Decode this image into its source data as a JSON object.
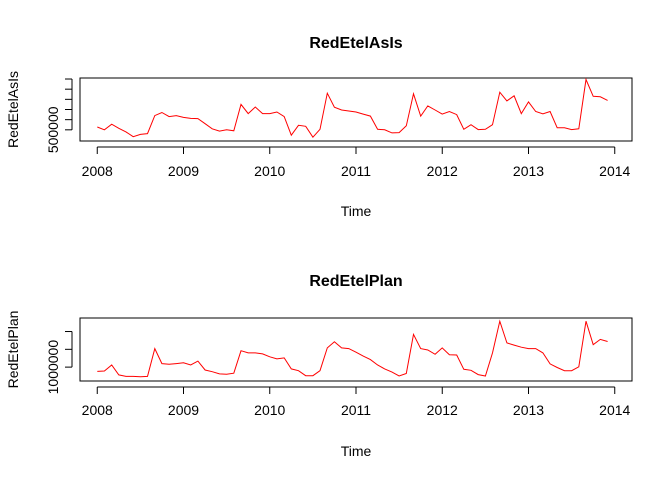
{
  "chart_data": [
    {
      "type": "line",
      "title": "RedEtelAsIs",
      "xlabel": "Time",
      "ylabel": "RedEtelAsIs",
      "x_ticks": [
        "2008",
        "2009",
        "2010",
        "2011",
        "2012",
        "2013",
        "2014"
      ],
      "y_tick_labels": [
        "500000"
      ],
      "xlim": [
        2007.8,
        2014.2
      ],
      "ylim": [
        280000,
        1520000
      ],
      "y_minor_ticks": [
        500000,
        700000,
        900000,
        1100000,
        1300000,
        1500000
      ],
      "grid": false,
      "line_color": "#ff0000",
      "x": [
        2008.0,
        2008.083,
        2008.167,
        2008.25,
        2008.333,
        2008.417,
        2008.5,
        2008.583,
        2008.667,
        2008.75,
        2008.833,
        2008.917,
        2009.0,
        2009.083,
        2009.167,
        2009.25,
        2009.333,
        2009.417,
        2009.5,
        2009.583,
        2009.667,
        2009.75,
        2009.833,
        2009.917,
        2010.0,
        2010.083,
        2010.167,
        2010.25,
        2010.333,
        2010.417,
        2010.5,
        2010.583,
        2010.667,
        2010.75,
        2010.833,
        2010.917,
        2011.0,
        2011.083,
        2011.167,
        2011.25,
        2011.333,
        2011.417,
        2011.5,
        2011.583,
        2011.667,
        2011.75,
        2011.833,
        2011.917,
        2012.0,
        2012.083,
        2012.167,
        2012.25,
        2012.333,
        2012.417,
        2012.5,
        2012.583,
        2012.667,
        2012.75,
        2012.833,
        2012.917,
        2013.0,
        2013.083,
        2013.167,
        2013.25,
        2013.333,
        2013.417,
        2013.5,
        2013.583,
        2013.667,
        2013.75,
        2013.833,
        2013.917
      ],
      "y": [
        555000,
        500000,
        610000,
        530000,
        460000,
        365000,
        410000,
        425000,
        780000,
        840000,
        760000,
        780000,
        745000,
        725000,
        720000,
        620000,
        520000,
        475000,
        500000,
        480000,
        1000000,
        820000,
        950000,
        820000,
        820000,
        850000,
        760000,
        395000,
        590000,
        570000,
        355000,
        510000,
        1220000,
        945000,
        890000,
        870000,
        850000,
        810000,
        770000,
        510000,
        500000,
        440000,
        445000,
        580000,
        1210000,
        770000,
        970000,
        890000,
        810000,
        860000,
        800000,
        510000,
        600000,
        505000,
        510000,
        600000,
        1240000,
        1070000,
        1170000,
        820000,
        1050000,
        860000,
        815000,
        860000,
        540000,
        540000,
        505000,
        520000,
        1490000,
        1160000,
        1150000,
        1080000
      ]
    },
    {
      "type": "line",
      "title": "RedEtelPlan",
      "xlabel": "Time",
      "ylabel": "RedEtelPlan",
      "x_ticks": [
        "2008",
        "2009",
        "2010",
        "2011",
        "2012",
        "2013",
        "2014"
      ],
      "y_tick_labels": [
        "1000000"
      ],
      "xlim": [
        2007.8,
        2014.2
      ],
      "ylim": [
        610000,
        2380000
      ],
      "y_minor_ticks": [
        1000000,
        1500000,
        2000000
      ],
      "grid": false,
      "line_color": "#ff0000",
      "x": [
        2008.0,
        2008.083,
        2008.167,
        2008.25,
        2008.333,
        2008.417,
        2008.5,
        2008.583,
        2008.667,
        2008.75,
        2008.833,
        2008.917,
        2009.0,
        2009.083,
        2009.167,
        2009.25,
        2009.333,
        2009.417,
        2009.5,
        2009.583,
        2009.667,
        2009.75,
        2009.833,
        2009.917,
        2010.0,
        2010.083,
        2010.167,
        2010.25,
        2010.333,
        2010.417,
        2010.5,
        2010.583,
        2010.667,
        2010.75,
        2010.833,
        2010.917,
        2011.0,
        2011.083,
        2011.167,
        2011.25,
        2011.333,
        2011.417,
        2011.5,
        2011.583,
        2011.667,
        2011.75,
        2011.833,
        2011.917,
        2012.0,
        2012.083,
        2012.167,
        2012.25,
        2012.333,
        2012.417,
        2012.5,
        2012.583,
        2012.667,
        2012.75,
        2012.833,
        2012.917,
        2013.0,
        2013.083,
        2013.167,
        2013.25,
        2013.333,
        2013.417,
        2013.5,
        2013.583,
        2013.667,
        2013.75,
        2013.833,
        2013.917
      ],
      "y": [
        880000,
        890000,
        1060000,
        780000,
        740000,
        740000,
        730000,
        740000,
        1520000,
        1100000,
        1080000,
        1100000,
        1120000,
        1060000,
        1170000,
        920000,
        870000,
        810000,
        800000,
        830000,
        1460000,
        1400000,
        1400000,
        1370000,
        1290000,
        1230000,
        1260000,
        950000,
        900000,
        760000,
        760000,
        900000,
        1540000,
        1710000,
        1540000,
        1520000,
        1420000,
        1310000,
        1210000,
        1060000,
        950000,
        860000,
        750000,
        820000,
        1920000,
        1520000,
        1480000,
        1360000,
        1540000,
        1350000,
        1340000,
        940000,
        910000,
        790000,
        750000,
        1400000,
        2290000,
        1680000,
        1620000,
        1560000,
        1520000,
        1520000,
        1400000,
        1090000,
        990000,
        900000,
        900000,
        1010000,
        2290000,
        1630000,
        1780000,
        1720000
      ]
    }
  ]
}
